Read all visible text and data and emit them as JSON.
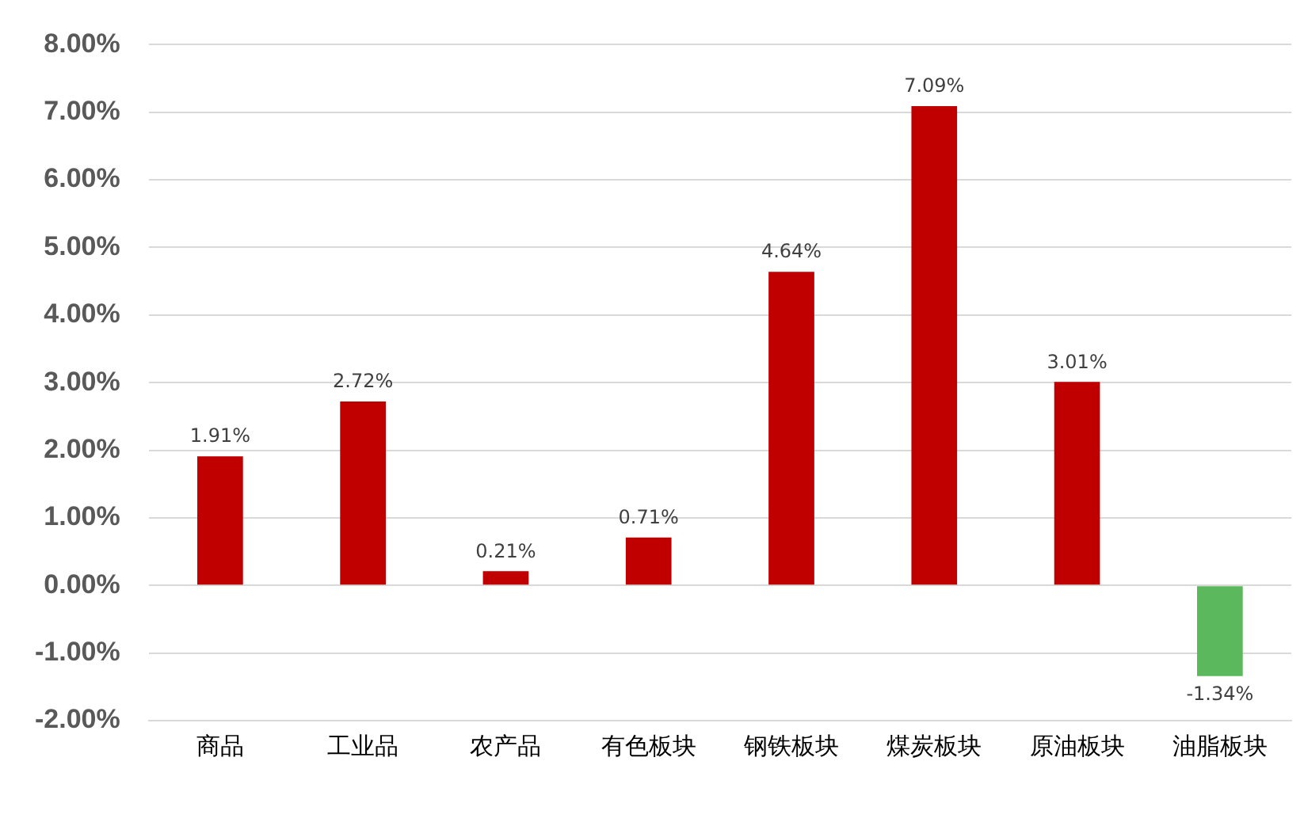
{
  "chart_data": {
    "type": "bar",
    "categories": [
      "商品",
      "工业品",
      "农产品",
      "有色板块",
      "钢铁板块",
      "煤炭板块",
      "原油板块",
      "油脂板块"
    ],
    "values": [
      1.91,
      2.72,
      0.21,
      0.71,
      4.64,
      7.09,
      3.01,
      -1.34
    ],
    "colors": [
      "#c00000",
      "#c00000",
      "#c00000",
      "#c00000",
      "#c00000",
      "#c00000",
      "#c00000",
      "#5cb85c"
    ],
    "value_labels": [
      "1.91%",
      "2.72%",
      "0.21%",
      "0.71%",
      "4.64%",
      "7.09%",
      "3.01%",
      "-1.34%"
    ],
    "ylim": [
      -2,
      8
    ],
    "yticks": [
      {
        "value": -2,
        "label": "-2.00%"
      },
      {
        "value": -1,
        "label": "-1.00%"
      },
      {
        "value": 0,
        "label": "0.00%"
      },
      {
        "value": 1,
        "label": "1.00%"
      },
      {
        "value": 2,
        "label": "2.00%"
      },
      {
        "value": 3,
        "label": "3.00%"
      },
      {
        "value": 4,
        "label": "4.00%"
      },
      {
        "value": 5,
        "label": "5.00%"
      },
      {
        "value": 6,
        "label": "6.00%"
      },
      {
        "value": 7,
        "label": "7.00%"
      },
      {
        "value": 8,
        "label": "8.00%"
      }
    ],
    "grid": "y",
    "legend": false
  }
}
